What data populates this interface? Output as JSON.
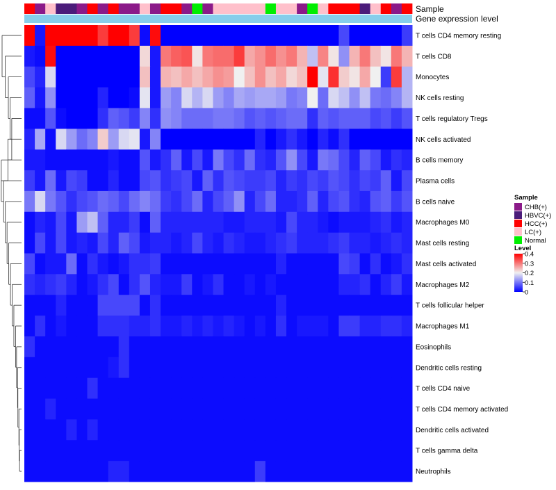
{
  "chart_data": {
    "type": "heatmap",
    "title": "",
    "annotation_labels": {
      "sample": "Sample",
      "gene_expression": "Gene expression level"
    },
    "sample_groups": [
      "CHB(+)",
      "HBVC(+)",
      "HCC(+)",
      "LC(+)",
      "Normal"
    ],
    "sample_group_colors": {
      "CHB(+)": "#8b1a89",
      "HBVC(+)": "#4b1c7a",
      "HCC(+)": "#ff0000",
      "LC(+)": "#ffc0cb",
      "Normal": "#00ee00"
    },
    "gene_expression_color": "#87ceeb",
    "column_samples": [
      "HCC(+)",
      "CHB(+)",
      "LC(+)",
      "HBVC(+)",
      "HBVC(+)",
      "CHB(+)",
      "HCC(+)",
      "CHB(+)",
      "HCC(+)",
      "CHB(+)",
      "CHB(+)",
      "LC(+)",
      "CHB(+)",
      "HCC(+)",
      "HCC(+)",
      "CHB(+)",
      "Normal",
      "CHB(+)",
      "LC(+)",
      "LC(+)",
      "LC(+)",
      "LC(+)",
      "LC(+)",
      "Normal",
      "LC(+)",
      "LC(+)",
      "CHB(+)",
      "Normal",
      "LC(+)",
      "HCC(+)",
      "HCC(+)",
      "HCC(+)",
      "HBVC(+)",
      "LC(+)",
      "HCC(+)",
      "CHB(+)",
      "HCC(+)"
    ],
    "rows": [
      "T cells CD4 memory resting",
      "T cells CD8",
      "Monocytes",
      "NK cells resting",
      "T cells regulatory  Tregs",
      "NK cells activated",
      "B cells memory",
      "Plasma cells",
      "B cells naive",
      "Macrophages M0",
      "Mast cells resting",
      "Mast cells activated",
      "Macrophages M2",
      "T cells follicular helper",
      "Macrophages M1",
      "Eosinophils",
      "Dendritic cells resting",
      "T cells CD4 naive",
      "T cells CD4 memory activated",
      "Dendritic cells activated",
      "T cells gamma delta",
      "Neutrophils"
    ],
    "values": [
      [
        0.4,
        0.02,
        0.4,
        0.4,
        0.4,
        0.4,
        0.4,
        0.35,
        0.4,
        0.4,
        0.35,
        0.01,
        0.39,
        0.0,
        0.0,
        0.0,
        0.0,
        0.0,
        0.0,
        0.0,
        0.0,
        0.0,
        0.0,
        0.0,
        0.0,
        0.0,
        0.0,
        0.0,
        0.0,
        0.0,
        0.06,
        0.0,
        0.0,
        0.0,
        0.0,
        0.0,
        0.05
      ],
      [
        0.02,
        0.01,
        0.39,
        0.0,
        0.0,
        0.0,
        0.0,
        0.0,
        0.0,
        0.0,
        0.0,
        0.22,
        0.02,
        0.3,
        0.32,
        0.33,
        0.21,
        0.3,
        0.31,
        0.31,
        0.35,
        0.26,
        0.28,
        0.31,
        0.28,
        0.3,
        0.25,
        0.16,
        0.29,
        0.21,
        0.12,
        0.25,
        0.3,
        0.24,
        0.21,
        0.3,
        0.25
      ],
      [
        0.06,
        0.03,
        0.18,
        0.0,
        0.0,
        0.0,
        0.0,
        0.0,
        0.0,
        0.0,
        0.0,
        0.24,
        0.02,
        0.25,
        0.24,
        0.26,
        0.24,
        0.26,
        0.28,
        0.27,
        0.2,
        0.24,
        0.28,
        0.24,
        0.26,
        0.22,
        0.24,
        0.4,
        0.19,
        0.36,
        0.23,
        0.21,
        0.26,
        0.2,
        0.05,
        0.35,
        0.15
      ],
      [
        0.08,
        0.02,
        0.12,
        0.0,
        0.0,
        0.0,
        0.0,
        0.03,
        0.0,
        0.0,
        0.01,
        0.19,
        0.02,
        0.13,
        0.11,
        0.18,
        0.15,
        0.18,
        0.13,
        0.11,
        0.14,
        0.13,
        0.14,
        0.14,
        0.13,
        0.1,
        0.11,
        0.2,
        0.09,
        0.18,
        0.16,
        0.12,
        0.16,
        0.1,
        0.09,
        0.11,
        0.15
      ],
      [
        0.01,
        0.01,
        0.07,
        0.01,
        0.0,
        0.0,
        0.0,
        0.04,
        0.08,
        0.07,
        0.05,
        0.11,
        0.04,
        0.12,
        0.11,
        0.09,
        0.09,
        0.09,
        0.1,
        0.1,
        0.09,
        0.07,
        0.08,
        0.07,
        0.08,
        0.09,
        0.09,
        0.04,
        0.08,
        0.07,
        0.08,
        0.08,
        0.08,
        0.06,
        0.07,
        0.05,
        0.07
      ],
      [
        0.03,
        0.14,
        0.01,
        0.18,
        0.13,
        0.09,
        0.11,
        0.23,
        0.13,
        0.18,
        0.19,
        0.02,
        0.11,
        0.0,
        0.0,
        0.0,
        0.0,
        0.0,
        0.0,
        0.0,
        0.0,
        0.0,
        0.03,
        0.0,
        0.02,
        0.04,
        0.02,
        0.0,
        0.03,
        0.01,
        0.04,
        0.0,
        0.0,
        0.0,
        0.0,
        0.0,
        0.0
      ],
      [
        0.02,
        0.02,
        0.01,
        0.01,
        0.01,
        0.01,
        0.01,
        0.01,
        0.02,
        0.01,
        0.01,
        0.07,
        0.02,
        0.04,
        0.08,
        0.02,
        0.06,
        0.02,
        0.1,
        0.06,
        0.04,
        0.09,
        0.04,
        0.03,
        0.07,
        0.12,
        0.06,
        0.02,
        0.1,
        0.09,
        0.06,
        0.03,
        0.08,
        0.06,
        0.02,
        0.04,
        0.03
      ],
      [
        0.05,
        0.02,
        0.09,
        0.02,
        0.06,
        0.05,
        0.01,
        0.01,
        0.03,
        0.01,
        0.01,
        0.06,
        0.07,
        0.04,
        0.05,
        0.06,
        0.02,
        0.08,
        0.04,
        0.07,
        0.06,
        0.05,
        0.05,
        0.06,
        0.03,
        0.05,
        0.04,
        0.06,
        0.05,
        0.07,
        0.06,
        0.04,
        0.06,
        0.05,
        0.08,
        0.02,
        0.06
      ],
      [
        0.1,
        0.18,
        0.1,
        0.07,
        0.04,
        0.06,
        0.07,
        0.09,
        0.08,
        0.06,
        0.09,
        0.11,
        0.09,
        0.05,
        0.04,
        0.06,
        0.09,
        0.03,
        0.06,
        0.08,
        0.12,
        0.03,
        0.06,
        0.09,
        0.03,
        0.03,
        0.04,
        0.08,
        0.03,
        0.06,
        0.07,
        0.04,
        0.03,
        0.07,
        0.08,
        0.05,
        0.07
      ],
      [
        0.01,
        0.03,
        0.02,
        0.06,
        0.02,
        0.13,
        0.16,
        0.08,
        0.03,
        0.03,
        0.05,
        0.01,
        0.08,
        0.03,
        0.03,
        0.03,
        0.03,
        0.03,
        0.03,
        0.02,
        0.02,
        0.03,
        0.03,
        0.03,
        0.02,
        0.06,
        0.03,
        0.03,
        0.02,
        0.01,
        0.02,
        0.02,
        0.02,
        0.03,
        0.04,
        0.02,
        0.03
      ],
      [
        0.01,
        0.06,
        0.02,
        0.06,
        0.02,
        0.03,
        0.02,
        0.06,
        0.03,
        0.08,
        0.06,
        0.02,
        0.03,
        0.03,
        0.02,
        0.03,
        0.06,
        0.03,
        0.02,
        0.04,
        0.03,
        0.02,
        0.02,
        0.03,
        0.04,
        0.05,
        0.03,
        0.03,
        0.03,
        0.04,
        0.05,
        0.03,
        0.03,
        0.02,
        0.03,
        0.04,
        0.03
      ],
      [
        0.06,
        0.01,
        0.02,
        0.02,
        0.09,
        0.01,
        0.04,
        0.02,
        0.01,
        0.02,
        0.04,
        0.04,
        0.05,
        0.01,
        0.01,
        0.01,
        0.01,
        0.01,
        0.01,
        0.01,
        0.01,
        0.01,
        0.01,
        0.01,
        0.03,
        0.01,
        0.01,
        0.01,
        0.01,
        0.01,
        0.06,
        0.05,
        0.01,
        0.04,
        0.01,
        0.02,
        0.04
      ],
      [
        0.04,
        0.03,
        0.04,
        0.05,
        0.03,
        0.01,
        0.02,
        0.04,
        0.06,
        0.01,
        0.04,
        0.07,
        0.03,
        0.02,
        0.02,
        0.05,
        0.01,
        0.02,
        0.04,
        0.01,
        0.01,
        0.02,
        0.01,
        0.02,
        0.01,
        0.01,
        0.01,
        0.01,
        0.01,
        0.01,
        0.03,
        0.03,
        0.04,
        0.01,
        0.03,
        0.05,
        0.02
      ],
      [
        0.01,
        0.01,
        0.01,
        0.03,
        0.01,
        0.01,
        0.01,
        0.06,
        0.06,
        0.06,
        0.06,
        0.01,
        0.04,
        0.01,
        0.01,
        0.01,
        0.01,
        0.01,
        0.01,
        0.01,
        0.01,
        0.01,
        0.01,
        0.01,
        0.03,
        0.01,
        0.01,
        0.01,
        0.01,
        0.01,
        0.01,
        0.01,
        0.01,
        0.01,
        0.01,
        0.01,
        0.01
      ],
      [
        0.01,
        0.04,
        0.01,
        0.02,
        0.01,
        0.01,
        0.01,
        0.04,
        0.04,
        0.04,
        0.03,
        0.03,
        0.04,
        0.02,
        0.02,
        0.03,
        0.02,
        0.03,
        0.02,
        0.03,
        0.02,
        0.01,
        0.02,
        0.01,
        0.04,
        0.01,
        0.02,
        0.02,
        0.02,
        0.01,
        0.05,
        0.05,
        0.03,
        0.03,
        0.04,
        0.04,
        0.03
      ],
      [
        0.04,
        0.01,
        0.01,
        0.01,
        0.01,
        0.01,
        0.01,
        0.01,
        0.01,
        0.04,
        0.01,
        0.01,
        0.01,
        0.01,
        0.01,
        0.01,
        0.01,
        0.01,
        0.01,
        0.01,
        0.01,
        0.01,
        0.01,
        0.01,
        0.01,
        0.01,
        0.01,
        0.01,
        0.01,
        0.01,
        0.01,
        0.01,
        0.01,
        0.01,
        0.01,
        0.01,
        0.01
      ],
      [
        0.01,
        0.01,
        0.01,
        0.01,
        0.01,
        0.01,
        0.01,
        0.01,
        0.02,
        0.04,
        0.01,
        0.01,
        0.01,
        0.01,
        0.01,
        0.01,
        0.01,
        0.01,
        0.01,
        0.01,
        0.01,
        0.01,
        0.01,
        0.01,
        0.01,
        0.01,
        0.01,
        0.01,
        0.01,
        0.01,
        0.01,
        0.01,
        0.01,
        0.01,
        0.01,
        0.01,
        0.01
      ],
      [
        0.01,
        0.01,
        0.01,
        0.01,
        0.01,
        0.01,
        0.04,
        0.01,
        0.01,
        0.01,
        0.01,
        0.01,
        0.01,
        0.01,
        0.01,
        0.01,
        0.01,
        0.01,
        0.01,
        0.01,
        0.01,
        0.01,
        0.01,
        0.01,
        0.01,
        0.01,
        0.01,
        0.01,
        0.01,
        0.01,
        0.01,
        0.01,
        0.01,
        0.01,
        0.01,
        0.01,
        0.01
      ],
      [
        0.01,
        0.01,
        0.03,
        0.01,
        0.01,
        0.01,
        0.01,
        0.01,
        0.01,
        0.01,
        0.01,
        0.01,
        0.01,
        0.01,
        0.01,
        0.01,
        0.01,
        0.01,
        0.01,
        0.01,
        0.01,
        0.01,
        0.01,
        0.01,
        0.01,
        0.01,
        0.01,
        0.01,
        0.01,
        0.01,
        0.01,
        0.01,
        0.01,
        0.01,
        0.01,
        0.01,
        0.01
      ],
      [
        0.01,
        0.01,
        0.01,
        0.01,
        0.03,
        0.01,
        0.03,
        0.01,
        0.01,
        0.01,
        0.01,
        0.01,
        0.01,
        0.01,
        0.01,
        0.01,
        0.01,
        0.01,
        0.01,
        0.01,
        0.01,
        0.01,
        0.01,
        0.01,
        0.01,
        0.01,
        0.01,
        0.01,
        0.01,
        0.01,
        0.01,
        0.01,
        0.01,
        0.01,
        0.01,
        0.01,
        0.01
      ],
      [
        0.01,
        0.01,
        0.01,
        0.01,
        0.01,
        0.01,
        0.01,
        0.01,
        0.01,
        0.01,
        0.01,
        0.01,
        0.01,
        0.01,
        0.01,
        0.01,
        0.01,
        0.01,
        0.01,
        0.01,
        0.01,
        0.01,
        0.01,
        0.01,
        0.01,
        0.01,
        0.01,
        0.01,
        0.01,
        0.01,
        0.01,
        0.01,
        0.01,
        0.01,
        0.01,
        0.01,
        0.01
      ],
      [
        0.01,
        0.01,
        0.01,
        0.01,
        0.01,
        0.01,
        0.01,
        0.01,
        0.03,
        0.03,
        0.01,
        0.01,
        0.01,
        0.01,
        0.01,
        0.01,
        0.01,
        0.01,
        0.01,
        0.01,
        0.01,
        0.01,
        0.05,
        0.01,
        0.01,
        0.01,
        0.01,
        0.01,
        0.01,
        0.01,
        0.01,
        0.01,
        0.01,
        0.01,
        0.01,
        0.01,
        0.01
      ]
    ],
    "legend": {
      "sample_title": "Sample",
      "level_title": "Level",
      "level_ticks": [
        "0.4",
        "0.3",
        "0.2",
        "0.1",
        "0"
      ],
      "level_tick_values": [
        0.4,
        0.3,
        0.2,
        0.1,
        0.0
      ],
      "level_range": [
        0,
        0.4
      ],
      "placement": "right"
    },
    "color_scale": {
      "low": "#0000ff",
      "mid": "#f0f0f0",
      "high": "#ff0000",
      "mid_value": 0.2
    },
    "dendrogram": "rows"
  }
}
